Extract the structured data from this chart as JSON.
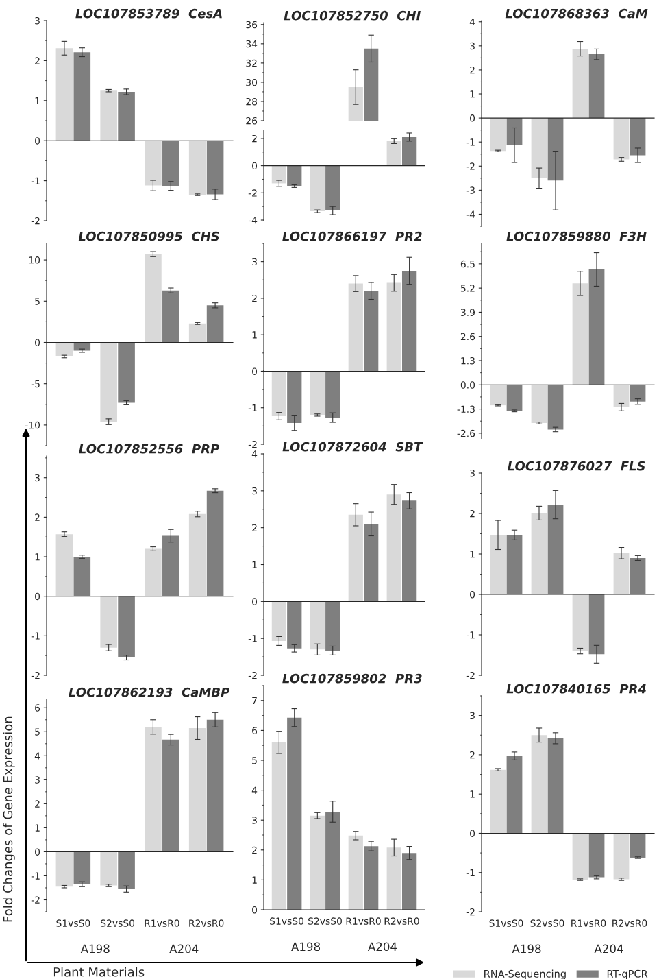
{
  "chart_data": [
    {
      "type": "bar",
      "title": "LOC107853789  CesA",
      "categories": [
        "S1vsS0",
        "S2vsS0",
        "R1vsR0",
        "R2vsR0"
      ],
      "ylim": [
        -2,
        3
      ],
      "yticks": [
        -2,
        -1,
        0,
        1,
        2,
        3
      ],
      "tick_labels": "y",
      "series": [
        {
          "color": "#d9d9d9",
          "values": [
            2.31,
            1.25,
            -1.12,
            -1.35
          ],
          "errors": [
            0.17,
            0.03,
            0.13,
            0.02
          ]
        },
        {
          "color": "#7f7f7f",
          "values": [
            2.21,
            1.22,
            -1.13,
            -1.34
          ],
          "errors": [
            0.11,
            0.07,
            0.11,
            0.13
          ]
        }
      ]
    },
    {
      "type": "bar",
      "title": "LOC107852750  CHI",
      "categories": [
        "S1vsS0",
        "S2vsS0",
        "R1vsR0",
        "R2vsR0"
      ],
      "ylim": [
        26,
        36.2
      ],
      "yticks": [
        26,
        28,
        30,
        32,
        34,
        36
      ],
      "tick_labels": "y",
      "series": [
        {
          "color": "#d9d9d9",
          "values": [
            null,
            null,
            29.5,
            null
          ],
          "errors": [
            null,
            null,
            1.8,
            null
          ]
        },
        {
          "color": "#7f7f7f",
          "values": [
            null,
            null,
            33.5,
            null
          ],
          "errors": [
            null,
            null,
            1.4,
            null
          ]
        }
      ]
    },
    {
      "type": "bar",
      "categories": [
        "S1vsS0",
        "S2vsS0",
        "R1vsR0",
        "R2vsR0"
      ],
      "ylim": [
        -4.05,
        2.6
      ],
      "yticks": [
        -4,
        -2,
        0,
        2
      ],
      "tick_labels": "y",
      "series": [
        {
          "color": "#d9d9d9",
          "values": [
            -1.3,
            -3.35,
            null,
            1.8
          ],
          "errors": [
            0.22,
            0.1,
            null,
            0.18
          ]
        },
        {
          "color": "#7f7f7f",
          "values": [
            -1.5,
            -3.3,
            null,
            2.1
          ],
          "errors": [
            0.1,
            0.3,
            null,
            0.3
          ]
        }
      ]
    },
    {
      "type": "bar",
      "title": "LOC107868363  CaM",
      "categories": [
        "S1vsS0",
        "S2vsS0",
        "R1vsR0",
        "R2vsR0"
      ],
      "ylim": [
        -4.5,
        4.05
      ],
      "yticks": [
        -4,
        -3,
        -2,
        -1,
        0,
        1,
        2,
        3,
        4
      ],
      "tick_labels": "y",
      "series": [
        {
          "color": "#d9d9d9",
          "values": [
            -1.37,
            -2.5,
            2.88,
            -1.72
          ],
          "errors": [
            0.03,
            0.42,
            0.3,
            0.08
          ]
        },
        {
          "color": "#7f7f7f",
          "values": [
            -1.13,
            -2.6,
            2.65,
            -1.55
          ],
          "errors": [
            0.72,
            1.22,
            0.22,
            0.3
          ]
        }
      ]
    },
    {
      "type": "bar",
      "title": "LOC107850995  CHS",
      "categories": [
        "S1vsS0",
        "S2vsS0",
        "R1vsR0",
        "R2vsR0"
      ],
      "ylim": [
        -12.5,
        12
      ],
      "yticks": [
        -10,
        -5,
        0,
        5,
        10
      ],
      "tick_labels": "y",
      "series": [
        {
          "color": "#d9d9d9",
          "values": [
            -1.7,
            -9.6,
            10.7,
            2.3
          ],
          "errors": [
            0.15,
            0.35,
            0.3,
            0.12
          ]
        },
        {
          "color": "#7f7f7f",
          "values": [
            -1.0,
            -7.3,
            6.3,
            4.5
          ],
          "errors": [
            0.2,
            0.25,
            0.3,
            0.3
          ]
        }
      ]
    },
    {
      "type": "bar",
      "title": "LOC107866197  PR2",
      "categories": [
        "S1vsS0",
        "S2vsS0",
        "R1vsR0",
        "R2vsR0"
      ],
      "ylim": [
        -2,
        3.5
      ],
      "yticks": [
        -2,
        -1,
        0,
        1,
        2,
        3
      ],
      "tick_labels": "y",
      "series": [
        {
          "color": "#d9d9d9",
          "values": [
            -1.23,
            -1.2,
            2.4,
            2.42
          ],
          "errors": [
            0.1,
            0.03,
            0.22,
            0.23
          ]
        },
        {
          "color": "#7f7f7f",
          "values": [
            -1.42,
            -1.27,
            2.2,
            2.75
          ],
          "errors": [
            0.2,
            0.13,
            0.23,
            0.37
          ]
        }
      ]
    },
    {
      "type": "bar",
      "title": "LOC107859880  F3H",
      "categories": [
        "S1vsS0",
        "S2vsS0",
        "R1vsR0",
        "R2vsR0"
      ],
      "ylim": [
        -2.9,
        7.6
      ],
      "yticks": [
        {
          "value": -2.6,
          "label": "-2.6"
        },
        {
          "value": -1.3,
          "label": "-1.3"
        },
        {
          "value": 0,
          "label": "0.0"
        },
        1.3,
        2.6,
        3.9,
        5.2,
        6.5
      ],
      "tick_labels": "y",
      "series": [
        {
          "color": "#d9d9d9",
          "values": [
            -1.1,
            -2.05,
            5.45,
            -1.2
          ],
          "errors": [
            0.03,
            0.05,
            0.65,
            0.2
          ]
        },
        {
          "color": "#7f7f7f",
          "values": [
            -1.4,
            -2.4,
            6.2,
            -0.9
          ],
          "errors": [
            0.05,
            0.12,
            0.9,
            0.15
          ]
        }
      ]
    },
    {
      "type": "bar",
      "title": "LOC107852556  PRP",
      "categories": [
        "S1vsS0",
        "S2vsS0",
        "R1vsR0",
        "R2vsR0"
      ],
      "ylim": [
        -2,
        3.55
      ],
      "yticks": [
        -2,
        -1,
        0,
        1,
        2,
        3
      ],
      "tick_labels": "y",
      "series": [
        {
          "color": "#d9d9d9",
          "values": [
            1.57,
            -1.3,
            1.2,
            2.08
          ],
          "errors": [
            0.06,
            0.08,
            0.05,
            0.07
          ]
        },
        {
          "color": "#7f7f7f",
          "values": [
            1.0,
            -1.55,
            1.53,
            2.67
          ],
          "errors": [
            0.04,
            0.06,
            0.16,
            0.05
          ]
        }
      ]
    },
    {
      "type": "bar",
      "title": "LOC107872604  SBT",
      "categories": [
        "S1vsS0",
        "S2vsS0",
        "R1vsR0",
        "R2vsR0"
      ],
      "ylim": [
        -2,
        4
      ],
      "yticks": [
        -2,
        -1,
        0,
        1,
        2,
        3,
        4
      ],
      "tick_labels": "y",
      "series": [
        {
          "color": "#d9d9d9",
          "values": [
            -1.07,
            -1.3,
            2.35,
            2.9
          ],
          "errors": [
            0.12,
            0.15,
            0.3,
            0.27
          ]
        },
        {
          "color": "#7f7f7f",
          "values": [
            -1.27,
            -1.33,
            2.1,
            2.73
          ],
          "errors": [
            0.1,
            0.12,
            0.32,
            0.22
          ]
        }
      ]
    },
    {
      "type": "bar",
      "title": "LOC107876027  FLS",
      "categories": [
        "S1vsS0",
        "S2vsS0",
        "R1vsR0",
        "R2vsR0"
      ],
      "ylim": [
        -2,
        3
      ],
      "yticks": [
        -2,
        -1,
        0,
        1,
        2,
        3
      ],
      "tick_labels": "y",
      "series": [
        {
          "color": "#d9d9d9",
          "values": [
            1.47,
            2.01,
            -1.4,
            1.02
          ],
          "errors": [
            0.36,
            0.17,
            0.07,
            0.14
          ]
        },
        {
          "color": "#7f7f7f",
          "values": [
            1.47,
            2.22,
            -1.48,
            0.9
          ],
          "errors": [
            0.12,
            0.35,
            0.22,
            0.06
          ]
        }
      ]
    },
    {
      "type": "bar",
      "title": "LOC107862193  CaMBP",
      "categories": [
        "S1vsS0",
        "S2vsS0",
        "R1vsR0",
        "R2vsR0"
      ],
      "ylim": [
        -2.5,
        6.35
      ],
      "yticks": [
        -2,
        -1,
        0,
        1,
        2,
        3,
        4,
        5,
        6
      ],
      "xlabel": "Plant Materials",
      "ylabel": "Fold Changes of Gene Expression",
      "annotations": [
        "A198",
        "A204"
      ],
      "series": [
        {
          "color": "#d9d9d9",
          "values": [
            -1.45,
            -1.4,
            5.2,
            5.15
          ],
          "errors": [
            0.05,
            0.05,
            0.3,
            0.47
          ]
        },
        {
          "color": "#7f7f7f",
          "values": [
            -1.35,
            -1.55,
            4.67,
            5.5
          ],
          "errors": [
            0.1,
            0.13,
            0.22,
            0.3
          ]
        }
      ]
    },
    {
      "type": "bar",
      "title": "LOC107859802  PR3",
      "categories": [
        "S1vsS0",
        "S2vsS0",
        "R1vsR0",
        "R2vsR0"
      ],
      "ylim": [
        0,
        7.5
      ],
      "yticks": [
        0,
        1,
        2,
        3,
        4,
        5,
        6,
        7
      ],
      "annotations": [
        "A198",
        "A204"
      ],
      "series": [
        {
          "color": "#d9d9d9",
          "values": [
            5.6,
            3.15,
            2.48,
            2.08
          ],
          "errors": [
            0.37,
            0.1,
            0.14,
            0.28
          ]
        },
        {
          "color": "#7f7f7f",
          "values": [
            6.43,
            3.28,
            2.13,
            1.9
          ],
          "errors": [
            0.3,
            0.35,
            0.16,
            0.22
          ]
        }
      ]
    },
    {
      "type": "bar",
      "title": "LOC107840165  PR4",
      "categories": [
        "S1vsS0",
        "S2vsS0",
        "R1vsR0",
        "R2vsR0"
      ],
      "ylim": [
        -2,
        3.5
      ],
      "yticks": [
        -2,
        -1,
        0,
        1,
        2,
        3
      ],
      "annotations": [
        "A198",
        "A204"
      ],
      "legend": "bottom",
      "series": [
        {
          "name": "RNA-Sequencing",
          "color": "#d9d9d9",
          "values": [
            1.62,
            2.5,
            -1.18,
            -1.17
          ],
          "errors": [
            0.03,
            0.18,
            0.02,
            0.03
          ]
        },
        {
          "name": "RT-qPCR",
          "color": "#7f7f7f",
          "values": [
            1.97,
            2.42,
            -1.12,
            -0.62
          ],
          "errors": [
            0.1,
            0.14,
            0.04,
            0.02
          ]
        }
      ]
    }
  ]
}
